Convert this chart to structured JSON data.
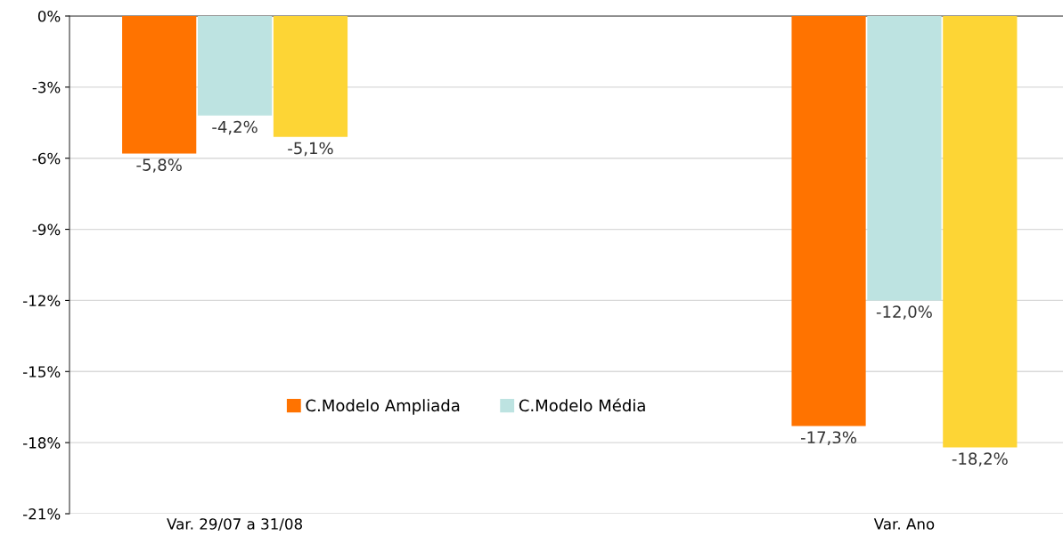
{
  "chart_data": {
    "type": "bar",
    "categories": [
      "Var. 29/07 a 31/08",
      "Var. Ano"
    ],
    "series": [
      {
        "name": "C.Modelo Ampliada",
        "color": "#ff7300",
        "values": [
          -5.8,
          -17.3
        ],
        "value_labels": [
          "-5,8%",
          "-17,3%"
        ]
      },
      {
        "name": "C.Modelo Média",
        "color": "#bde3e1",
        "values": [
          -4.2,
          -12.0
        ],
        "value_labels": [
          "-4,2%",
          "-12,0%"
        ]
      },
      {
        "color": "#fdd535",
        "values": [
          -5.1,
          -18.2
        ],
        "value_labels": [
          "-5,1%",
          "-18,2%"
        ]
      }
    ],
    "ylim": [
      -21,
      0
    ],
    "yticks": [
      {
        "value": 0,
        "label": "0%"
      },
      {
        "value": -3,
        "label": "-3%"
      },
      {
        "value": -6,
        "label": "-6%"
      },
      {
        "value": -9,
        "label": "-9%"
      },
      {
        "value": -12,
        "label": "-12%"
      },
      {
        "value": -15,
        "label": "-15%"
      },
      {
        "value": -18,
        "label": "-18%"
      },
      {
        "value": -21,
        "label": "-21%"
      }
    ],
    "grid": "y",
    "legend": "bottom"
  }
}
